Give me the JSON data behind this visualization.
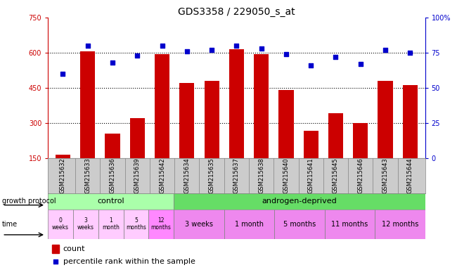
{
  "title": "GDS3358 / 229050_s_at",
  "samples": [
    "GSM215632",
    "GSM215633",
    "GSM215636",
    "GSM215639",
    "GSM215642",
    "GSM215634",
    "GSM215635",
    "GSM215637",
    "GSM215638",
    "GSM215640",
    "GSM215641",
    "GSM215645",
    "GSM215646",
    "GSM215643",
    "GSM215644"
  ],
  "counts": [
    165,
    605,
    255,
    320,
    595,
    470,
    480,
    615,
    595,
    440,
    265,
    340,
    300,
    480,
    460
  ],
  "percentiles": [
    60,
    80,
    68,
    73,
    80,
    76,
    77,
    80,
    78,
    74,
    66,
    72,
    67,
    77,
    75
  ],
  "ylim_left": [
    150,
    750
  ],
  "ylim_right": [
    0,
    100
  ],
  "yticks_left": [
    150,
    300,
    450,
    600,
    750
  ],
  "yticks_right": [
    0,
    25,
    50,
    75,
    100
  ],
  "yticklabels_right": [
    "0",
    "25",
    "50",
    "75",
    "100%"
  ],
  "bar_color": "#cc0000",
  "scatter_color": "#0000cc",
  "bg_color": "#ffffff",
  "label_bg": "#cccccc",
  "control_color": "#aaffaa",
  "androgen_color": "#66dd66",
  "time_ctrl_colors": [
    "#ffccff",
    "#ffccff",
    "#ffccff",
    "#ffccff",
    "#ff88ff"
  ],
  "time_androgen_color": "#ee88ee",
  "control_label": "control",
  "androgen_label": "androgen-deprived",
  "time_control": [
    "0\nweeks",
    "3\nweeks",
    "1\nmonth",
    "5\nmonths",
    "12\nmonths"
  ],
  "time_androgen": [
    "3 weeks",
    "1 month",
    "5 months",
    "11 months",
    "12 months"
  ],
  "legend_count": "count",
  "legend_percentile": "percentile rank within the sample",
  "growth_protocol_label": "growth protocol",
  "time_label": "time",
  "n_control": 5,
  "n_androgen": 10,
  "n_androgen_groups": 5
}
